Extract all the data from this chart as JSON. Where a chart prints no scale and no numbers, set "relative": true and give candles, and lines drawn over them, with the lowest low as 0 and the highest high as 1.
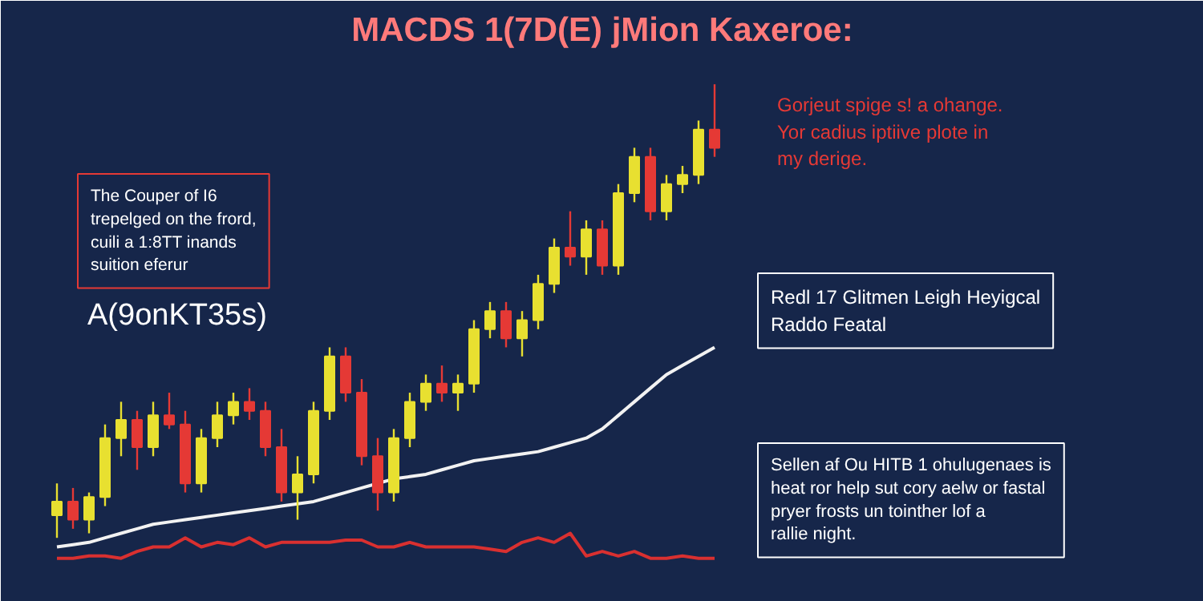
{
  "chart_data": {
    "type": "candlestick",
    "relative": true,
    "title": "MACDS 1(7D(E) jMion Kaxeroe:",
    "categories": [
      null,
      null,
      null,
      null,
      null,
      null,
      null,
      null,
      null,
      null,
      null,
      null,
      null,
      null,
      null,
      null,
      null,
      null,
      null,
      null,
      null,
      null,
      null,
      null,
      null,
      null,
      null,
      null,
      null,
      null,
      null,
      null,
      null,
      null,
      null,
      null,
      null,
      null,
      null,
      null,
      null,
      null
    ],
    "ohlc": [
      [
        0.05,
        0.12,
        0.0,
        0.08
      ],
      [
        0.08,
        0.11,
        0.02,
        0.04
      ],
      [
        0.04,
        0.1,
        0.01,
        0.09
      ],
      [
        0.09,
        0.25,
        0.07,
        0.22
      ],
      [
        0.22,
        0.3,
        0.18,
        0.26
      ],
      [
        0.26,
        0.28,
        0.15,
        0.2
      ],
      [
        0.2,
        0.3,
        0.18,
        0.27
      ],
      [
        0.27,
        0.32,
        0.24,
        0.25
      ],
      [
        0.25,
        0.28,
        0.1,
        0.12
      ],
      [
        0.12,
        0.24,
        0.1,
        0.22
      ],
      [
        0.22,
        0.3,
        0.2,
        0.27
      ],
      [
        0.27,
        0.32,
        0.25,
        0.3
      ],
      [
        0.3,
        0.33,
        0.26,
        0.28
      ],
      [
        0.28,
        0.3,
        0.18,
        0.2
      ],
      [
        0.2,
        0.24,
        0.08,
        0.1
      ],
      [
        0.1,
        0.18,
        0.04,
        0.14
      ],
      [
        0.14,
        0.3,
        0.12,
        0.28
      ],
      [
        0.28,
        0.42,
        0.26,
        0.4
      ],
      [
        0.4,
        0.42,
        0.3,
        0.32
      ],
      [
        0.32,
        0.35,
        0.16,
        0.18
      ],
      [
        0.18,
        0.22,
        0.06,
        0.1
      ],
      [
        0.1,
        0.24,
        0.08,
        0.22
      ],
      [
        0.22,
        0.32,
        0.2,
        0.3
      ],
      [
        0.3,
        0.36,
        0.28,
        0.34
      ],
      [
        0.34,
        0.38,
        0.3,
        0.32
      ],
      [
        0.32,
        0.36,
        0.28,
        0.34
      ],
      [
        0.34,
        0.48,
        0.32,
        0.46
      ],
      [
        0.46,
        0.52,
        0.44,
        0.5
      ],
      [
        0.5,
        0.52,
        0.42,
        0.44
      ],
      [
        0.44,
        0.5,
        0.4,
        0.48
      ],
      [
        0.48,
        0.58,
        0.46,
        0.56
      ],
      [
        0.56,
        0.66,
        0.54,
        0.64
      ],
      [
        0.64,
        0.72,
        0.6,
        0.62
      ],
      [
        0.62,
        0.7,
        0.58,
        0.68
      ],
      [
        0.68,
        0.7,
        0.58,
        0.6
      ],
      [
        0.6,
        0.78,
        0.58,
        0.76
      ],
      [
        0.76,
        0.86,
        0.74,
        0.84
      ],
      [
        0.84,
        0.86,
        0.7,
        0.72
      ],
      [
        0.72,
        0.8,
        0.7,
        0.78
      ],
      [
        0.78,
        0.82,
        0.76,
        0.8
      ],
      [
        0.8,
        0.92,
        0.78,
        0.9
      ],
      [
        0.9,
        1.0,
        0.84,
        0.86
      ]
    ],
    "colors": [
      "#e8e030",
      "#e53935",
      "#e8e030",
      "#e8e030",
      "#e8e030",
      "#e53935",
      "#e8e030",
      "#e53935",
      "#e53935",
      "#e8e030",
      "#e8e030",
      "#e8e030",
      "#e53935",
      "#e53935",
      "#e53935",
      "#e8e030",
      "#e8e030",
      "#e8e030",
      "#e53935",
      "#e53935",
      "#e53935",
      "#e8e030",
      "#e8e030",
      "#e8e030",
      "#e53935",
      "#e8e030",
      "#e8e030",
      "#e8e030",
      "#e53935",
      "#e8e030",
      "#e8e030",
      "#e8e030",
      "#e53935",
      "#e8e030",
      "#e53935",
      "#e8e030",
      "#e8e030",
      "#e53935",
      "#e8e030",
      "#e8e030",
      "#e8e030",
      "#e53935"
    ],
    "series": [
      {
        "type": "line",
        "color": "#f2f2f2",
        "values": [
          -0.02,
          -0.015,
          -0.01,
          0.0,
          0.01,
          0.02,
          0.03,
          0.035,
          0.04,
          0.045,
          0.05,
          0.055,
          0.06,
          0.065,
          0.07,
          0.075,
          0.08,
          0.09,
          0.1,
          0.11,
          0.12,
          0.13,
          0.135,
          0.14,
          0.15,
          0.16,
          0.17,
          0.175,
          0.18,
          0.185,
          0.19,
          0.2,
          0.21,
          0.22,
          0.24,
          0.27,
          0.3,
          0.33,
          0.36,
          0.38,
          0.4,
          0.42
        ]
      },
      {
        "type": "line",
        "color": "#d93030",
        "values": [
          -0.045,
          -0.045,
          -0.04,
          -0.04,
          -0.045,
          -0.03,
          -0.02,
          -0.02,
          0.0,
          -0.02,
          -0.01,
          -0.015,
          -0.0,
          -0.02,
          -0.01,
          -0.01,
          -0.01,
          -0.01,
          -0.005,
          -0.005,
          -0.02,
          -0.02,
          -0.01,
          -0.02,
          -0.02,
          -0.02,
          -0.02,
          -0.025,
          -0.03,
          -0.01,
          -0.0,
          -0.01,
          0.01,
          -0.04,
          -0.03,
          -0.04,
          -0.03,
          -0.045,
          -0.045,
          -0.04,
          -0.045,
          -0.045
        ]
      }
    ],
    "annotations": [
      "The Couper of I6\ntrepelged on the frord,\ncuili a 1:8TT inands\nsuition eferur",
      "A(9onKT35s)",
      "Gorjeut spige s! a ohange.\nYor cadius iptiive plote in\nmy derige.",
      "Redl 17 Glitmen Leigh Heyigcal\nRaddo Featal",
      "Sellen af Ou HITB 1 ohulugenaes is\nheat ror help sut cory aelw or fastal\npryer frosts un tointher lof a\nrallie night."
    ]
  }
}
